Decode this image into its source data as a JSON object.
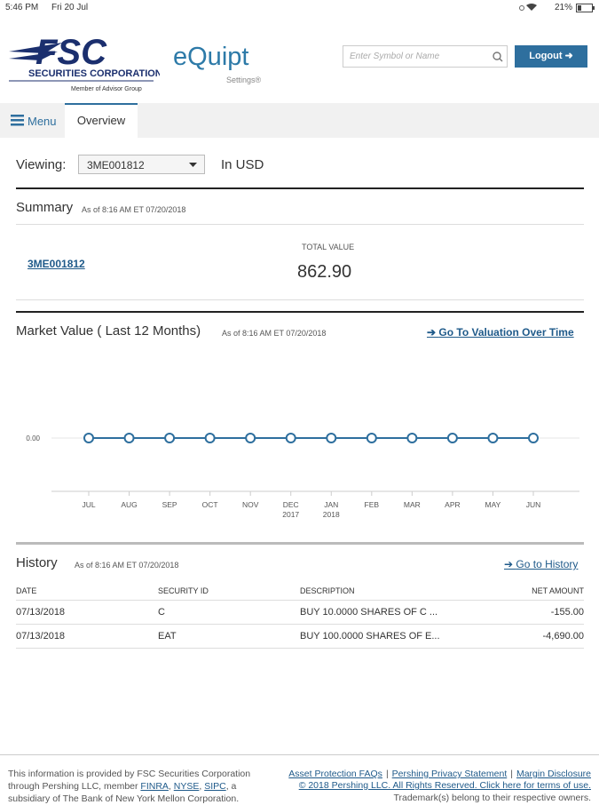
{
  "status_bar": {
    "time": "5:46 PM",
    "date": "Fri 20 Jul",
    "battery": "21%"
  },
  "header": {
    "logo_title": "FSC",
    "logo_subtitle": "SECURITIES CORPORATION",
    "logo_tagline": "Member of Advisor Group",
    "app_name": "eQuipt",
    "settings": "Settings®",
    "search_placeholder": "Enter Symbol or Name",
    "logout": "Logout"
  },
  "nav": {
    "menu": "Menu",
    "tab": "Overview"
  },
  "viewing": {
    "label": "Viewing:",
    "account": "3ME001812",
    "currency": "In USD"
  },
  "summary": {
    "title": "Summary",
    "as_of": "As of 8:16 AM ET 07/20/2018",
    "account_link": "3ME001812",
    "total_value_label": "TOTAL VALUE",
    "total_value": "862.90"
  },
  "market_value": {
    "title": "Market Value ( Last 12 Months)",
    "as_of": "As of 8:16 AM ET 07/20/2018",
    "link": "Go To Valuation Over Time",
    "chart": {
      "type": "line",
      "color": "#2e6f9e",
      "categories": [
        "JUL",
        "AUG",
        "SEP",
        "OCT",
        "NOV",
        "DEC\n2017",
        "JAN\n2018",
        "FEB",
        "MAR",
        "APR",
        "MAY",
        "JUN"
      ],
      "values": [
        0,
        0,
        0,
        0,
        0,
        0,
        0,
        0,
        0,
        0,
        0,
        0
      ],
      "ylim": [
        -1,
        1
      ],
      "yticks": [
        {
          "value": 0,
          "label": "0.00"
        }
      ]
    }
  },
  "history": {
    "title": "History",
    "as_of": "As of 8:16 AM ET 07/20/2018",
    "link": "Go to History",
    "columns": [
      "DATE",
      "SECURITY ID",
      "DESCRIPTION",
      "NET AMOUNT"
    ],
    "rows": [
      [
        "07/13/2018",
        "C",
        "BUY 10.0000 SHARES OF C ...",
        "-155.00"
      ],
      [
        "07/13/2018",
        "EAT",
        "BUY 100.0000 SHARES OF E...",
        "-4,690.00"
      ]
    ]
  },
  "footer": {
    "left": [
      {
        "text": "This information is provided by FSC Securities Corporation through Pershing LLC, member ",
        "link": false
      },
      {
        "text": "FINRA",
        "link": true
      },
      {
        "text": ", ",
        "link": false
      },
      {
        "text": "NYSE",
        "link": true
      },
      {
        "text": ", ",
        "link": false
      },
      {
        "text": "SIPC",
        "link": true
      },
      {
        "text": ", a subsidiary of The Bank of New York Mellon Corporation.",
        "link": false
      }
    ],
    "links": [
      "Asset Protection FAQs",
      "Pershing Privacy Statement",
      "Margin Disclosure"
    ],
    "separator": "|",
    "copyright": "© 2018 Pershing LLC. All Rights Reserved. Click here for terms of use.",
    "trademark": "Trademark(s) belong to their respective owners."
  }
}
